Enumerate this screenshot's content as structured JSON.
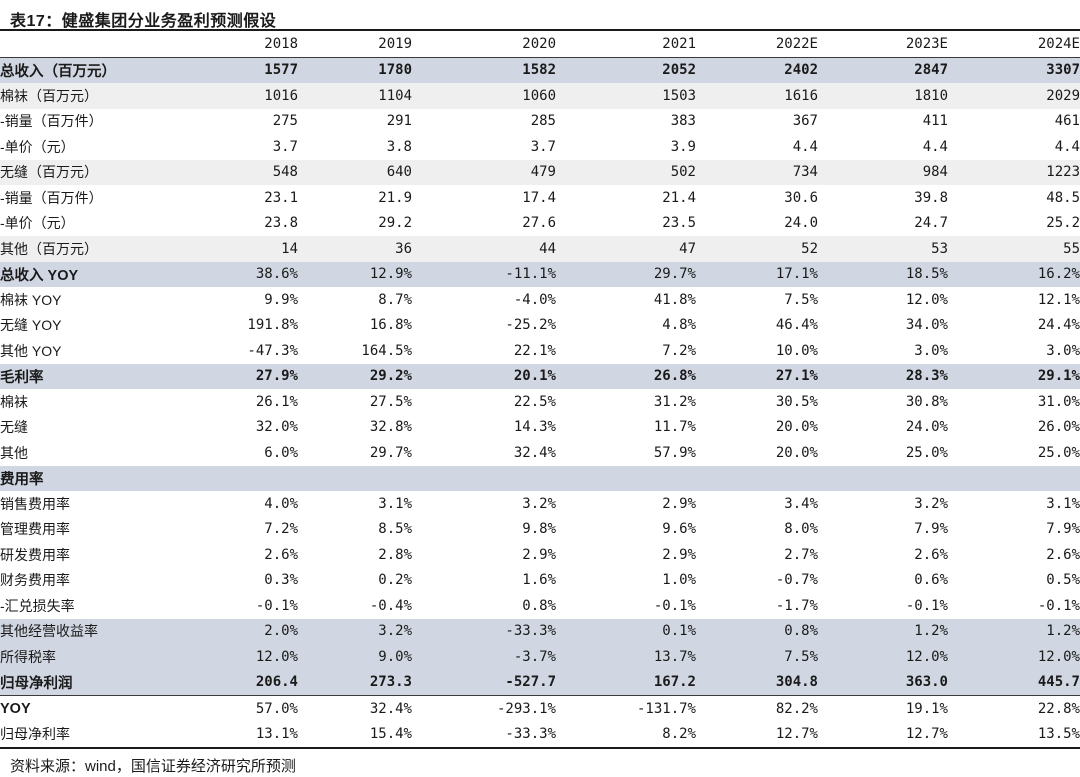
{
  "title": "表17：健盛集团分业务盈利预测假设",
  "source_note": "资料来源：wind，国信证券经济研究所预测",
  "colors": {
    "band_blue": "#d1d7e2",
    "band_gray": "#efefef",
    "rule_dark": "#1a1a1a"
  },
  "table": {
    "columns": [
      "",
      "2018",
      "2019",
      "2020",
      "2021",
      "2022E",
      "2023E",
      "2024E"
    ],
    "rows": [
      {
        "label": "总收入（百万元）",
        "values": [
          "1577",
          "1780",
          "1582",
          "2052",
          "2402",
          "2847",
          "3307"
        ],
        "bg": "blue",
        "bold_label": true,
        "bold_values": true
      },
      {
        "label": "棉袜（百万元）",
        "values": [
          "1016",
          "1104",
          "1060",
          "1503",
          "1616",
          "1810",
          "2029"
        ],
        "bg": "gray"
      },
      {
        "label": "-销量（百万件）",
        "values": [
          "275",
          "291",
          "285",
          "383",
          "367",
          "411",
          "461"
        ]
      },
      {
        "label": "-单价（元）",
        "values": [
          "3.7",
          "3.8",
          "3.7",
          "3.9",
          "4.4",
          "4.4",
          "4.4"
        ]
      },
      {
        "label": "无缝（百万元）",
        "values": [
          "548",
          "640",
          "479",
          "502",
          "734",
          "984",
          "1223"
        ],
        "bg": "gray"
      },
      {
        "label": "-销量（百万件）",
        "values": [
          "23.1",
          "21.9",
          "17.4",
          "21.4",
          "30.6",
          "39.8",
          "48.5"
        ]
      },
      {
        "label": "-单价（元）",
        "values": [
          "23.8",
          "29.2",
          "27.6",
          "23.5",
          "24.0",
          "24.7",
          "25.2"
        ]
      },
      {
        "label": "其他（百万元）",
        "values": [
          "14",
          "36",
          "44",
          "47",
          "52",
          "53",
          "55"
        ],
        "bg": "gray"
      },
      {
        "label": "总收入 YOY",
        "values": [
          "38.6%",
          "12.9%",
          "-11.1%",
          "29.7%",
          "17.1%",
          "18.5%",
          "16.2%"
        ],
        "bg": "blue",
        "bold_label": true
      },
      {
        "label": "棉袜 YOY",
        "values": [
          "9.9%",
          "8.7%",
          "-4.0%",
          "41.8%",
          "7.5%",
          "12.0%",
          "12.1%"
        ]
      },
      {
        "label": "无缝 YOY",
        "values": [
          "191.8%",
          "16.8%",
          "-25.2%",
          "4.8%",
          "46.4%",
          "34.0%",
          "24.4%"
        ]
      },
      {
        "label": "其他 YOY",
        "values": [
          "-47.3%",
          "164.5%",
          "22.1%",
          "7.2%",
          "10.0%",
          "3.0%",
          "3.0%"
        ]
      },
      {
        "label": "毛利率",
        "values": [
          "27.9%",
          "29.2%",
          "20.1%",
          "26.8%",
          "27.1%",
          "28.3%",
          "29.1%"
        ],
        "bg": "blue",
        "bold_label": true,
        "bold_values": true
      },
      {
        "label": "棉袜",
        "values": [
          "26.1%",
          "27.5%",
          "22.5%",
          "31.2%",
          "30.5%",
          "30.8%",
          "31.0%"
        ]
      },
      {
        "label": "无缝",
        "values": [
          "32.0%",
          "32.8%",
          "14.3%",
          "11.7%",
          "20.0%",
          "24.0%",
          "26.0%"
        ]
      },
      {
        "label": "其他",
        "values": [
          "6.0%",
          "29.7%",
          "32.4%",
          "57.9%",
          "20.0%",
          "25.0%",
          "25.0%"
        ]
      },
      {
        "label": "费用率",
        "values": [
          "",
          "",
          "",
          "",
          "",
          "",
          ""
        ],
        "bg": "blue",
        "bold_label": true
      },
      {
        "label": "销售费用率",
        "values": [
          "4.0%",
          "3.1%",
          "3.2%",
          "2.9%",
          "3.4%",
          "3.2%",
          "3.1%"
        ]
      },
      {
        "label": "管理费用率",
        "values": [
          "7.2%",
          "8.5%",
          "9.8%",
          "9.6%",
          "8.0%",
          "7.9%",
          "7.9%"
        ]
      },
      {
        "label": "研发费用率",
        "values": [
          "2.6%",
          "2.8%",
          "2.9%",
          "2.9%",
          "2.7%",
          "2.6%",
          "2.6%"
        ]
      },
      {
        "label": "财务费用率",
        "values": [
          "0.3%",
          "0.2%",
          "1.6%",
          "1.0%",
          "-0.7%",
          "0.6%",
          "0.5%"
        ]
      },
      {
        "label": "-汇兑损失率",
        "values": [
          "-0.1%",
          "-0.4%",
          "0.8%",
          "-0.1%",
          "-1.7%",
          "-0.1%",
          "-0.1%"
        ]
      },
      {
        "label": "其他经营收益率",
        "values": [
          "2.0%",
          "3.2%",
          "-33.3%",
          "0.1%",
          "0.8%",
          "1.2%",
          "1.2%"
        ],
        "bg": "blue"
      },
      {
        "label": "所得税率",
        "values": [
          "12.0%",
          "9.0%",
          "-3.7%",
          "13.7%",
          "7.5%",
          "12.0%",
          "12.0%"
        ],
        "bg": "blue"
      },
      {
        "label": "归母净利润",
        "values": [
          "206.4",
          "273.3",
          "-527.7",
          "167.2",
          "304.8",
          "363.0",
          "445.7"
        ],
        "bg": "blue",
        "bold_label": true,
        "bold_values": true,
        "rule_below": true
      },
      {
        "label": "YOY",
        "values": [
          "57.0%",
          "32.4%",
          "-293.1%",
          "-131.7%",
          "82.2%",
          "19.1%",
          "22.8%"
        ],
        "bold_label": true
      },
      {
        "label": "归母净利率",
        "values": [
          "13.1%",
          "15.4%",
          "-33.3%",
          "8.2%",
          "12.7%",
          "12.7%",
          "13.5%"
        ]
      }
    ]
  }
}
